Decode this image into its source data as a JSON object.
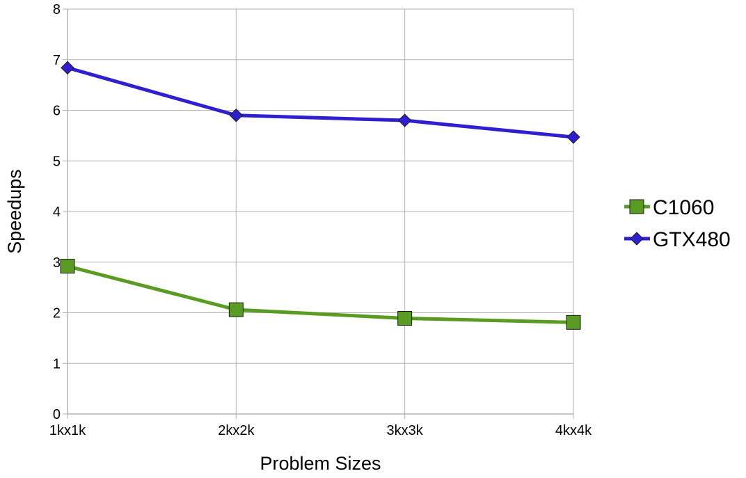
{
  "chart_data": {
    "type": "line",
    "title": "",
    "xlabel": "Problem Sizes",
    "ylabel": "Speedups",
    "categories": [
      "1kx1k",
      "2kx2k",
      "3kx3k",
      "4kx4k"
    ],
    "ylim": [
      0,
      8
    ],
    "yticks": [
      "0",
      "1",
      "2",
      "3",
      "4",
      "5",
      "6",
      "7",
      "8"
    ],
    "grid": true,
    "legend_position": "right",
    "series": [
      {
        "name": "C1060",
        "values": [
          2.92,
          2.06,
          1.89,
          1.81
        ],
        "color": "#5a9b23",
        "marker": "square"
      },
      {
        "name": "GTX480",
        "values": [
          6.84,
          5.9,
          5.8,
          5.47
        ],
        "color": "#2f1fd0",
        "marker": "diamond"
      }
    ]
  }
}
